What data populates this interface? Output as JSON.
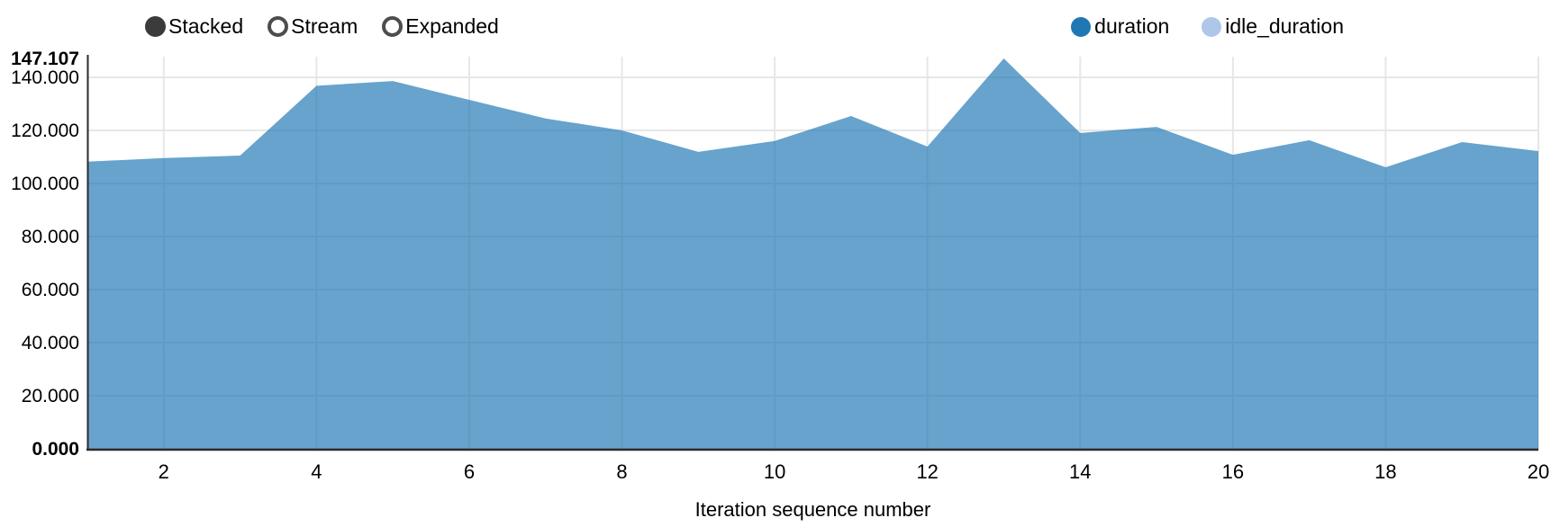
{
  "controls": {
    "items": [
      {
        "label": "Stacked",
        "selected": true
      },
      {
        "label": "Stream",
        "selected": false
      },
      {
        "label": "Expanded",
        "selected": false
      }
    ]
  },
  "legend": {
    "position": "top-right",
    "items": [
      {
        "label": "duration",
        "color": "#1f77b4"
      },
      {
        "label": "idle_duration",
        "color": "#aec7e8"
      }
    ]
  },
  "chart_data": {
    "type": "area",
    "mode": "stacked",
    "title": "",
    "xlabel": "Iteration sequence number",
    "ylabel": "",
    "grid": true,
    "xlim": [
      1,
      20
    ],
    "ylim": [
      0,
      147.107
    ],
    "x_ticks": [
      2,
      4,
      6,
      8,
      10,
      12,
      14,
      16,
      18,
      20
    ],
    "y_ticks": [
      20,
      40,
      60,
      80,
      100,
      120,
      140
    ],
    "y_axis_max_label": "147.107",
    "y_axis_min_label": "0.000",
    "y_tick_decimals": 3,
    "x": [
      1,
      2,
      3,
      4,
      5,
      6,
      7,
      8,
      9,
      10,
      11,
      12,
      13,
      14,
      15,
      16,
      17,
      18,
      19,
      20
    ],
    "series": [
      {
        "name": "duration",
        "color": "#1f77b4",
        "values": [
          108.2,
          109.6,
          110.5,
          136.8,
          138.6,
          131.5,
          124.5,
          120.0,
          111.9,
          116.0,
          125.4,
          113.9,
          147.107,
          119.0,
          121.3,
          110.8,
          116.3,
          106.1,
          115.6,
          112.2
        ]
      },
      {
        "name": "idle_duration",
        "color": "#aec7e8",
        "values": [
          0,
          0,
          0,
          0,
          0,
          0,
          0,
          0,
          0,
          0,
          0,
          0,
          0,
          0,
          0,
          0,
          0,
          0,
          0,
          0
        ]
      }
    ]
  },
  "style": {
    "area_opacity": 0.68,
    "grid_color": "#e7e7e7",
    "axis_line_color": "#2b2b2b",
    "text_color": "#000000",
    "control_circle_color": "#3b3b3b"
  }
}
